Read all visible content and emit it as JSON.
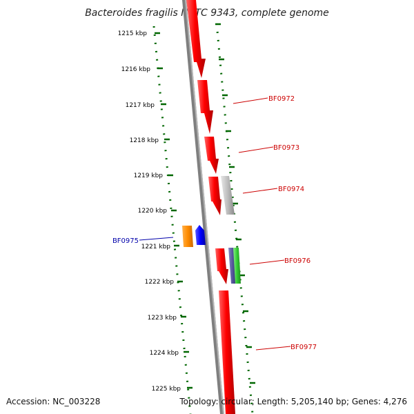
{
  "title": "Bacteroides fragilis NCTC 9343, complete genome",
  "ticks": [
    "1215 kbp",
    "1216 kbp",
    "1217 kbp",
    "1218 kbp",
    "1219 kbp",
    "1220 kbp",
    "1221 kbp",
    "1222 kbp",
    "1223 kbp",
    "1224 kbp",
    "1225 kbp"
  ],
  "genes_forward": [
    {
      "label": "BF0972",
      "color": "#cc0000"
    },
    {
      "label": "BF0973",
      "color": "#cc0000"
    },
    {
      "label": "BF0974",
      "color": "#cc0000"
    },
    {
      "label": "BF0976",
      "color": "#cc0000"
    },
    {
      "label": "BF0977",
      "color": "#cc0000"
    }
  ],
  "genes_reverse": [
    {
      "label": "BF0975",
      "color": "#0000aa"
    }
  ],
  "colors": {
    "backbone": "#7f7f7f",
    "cds": "#ff0000",
    "pseudo": "#bbbbbb",
    "orange": "#ff8c00",
    "blue": "#0000ff",
    "purple": "#55559a",
    "green": "#33cc33",
    "dots": "#006600"
  },
  "footer": {
    "accession": "Accession: NC_003228",
    "topology": "Topology: circular; Length: 5,205,140 bp; Genes: 4,276"
  }
}
